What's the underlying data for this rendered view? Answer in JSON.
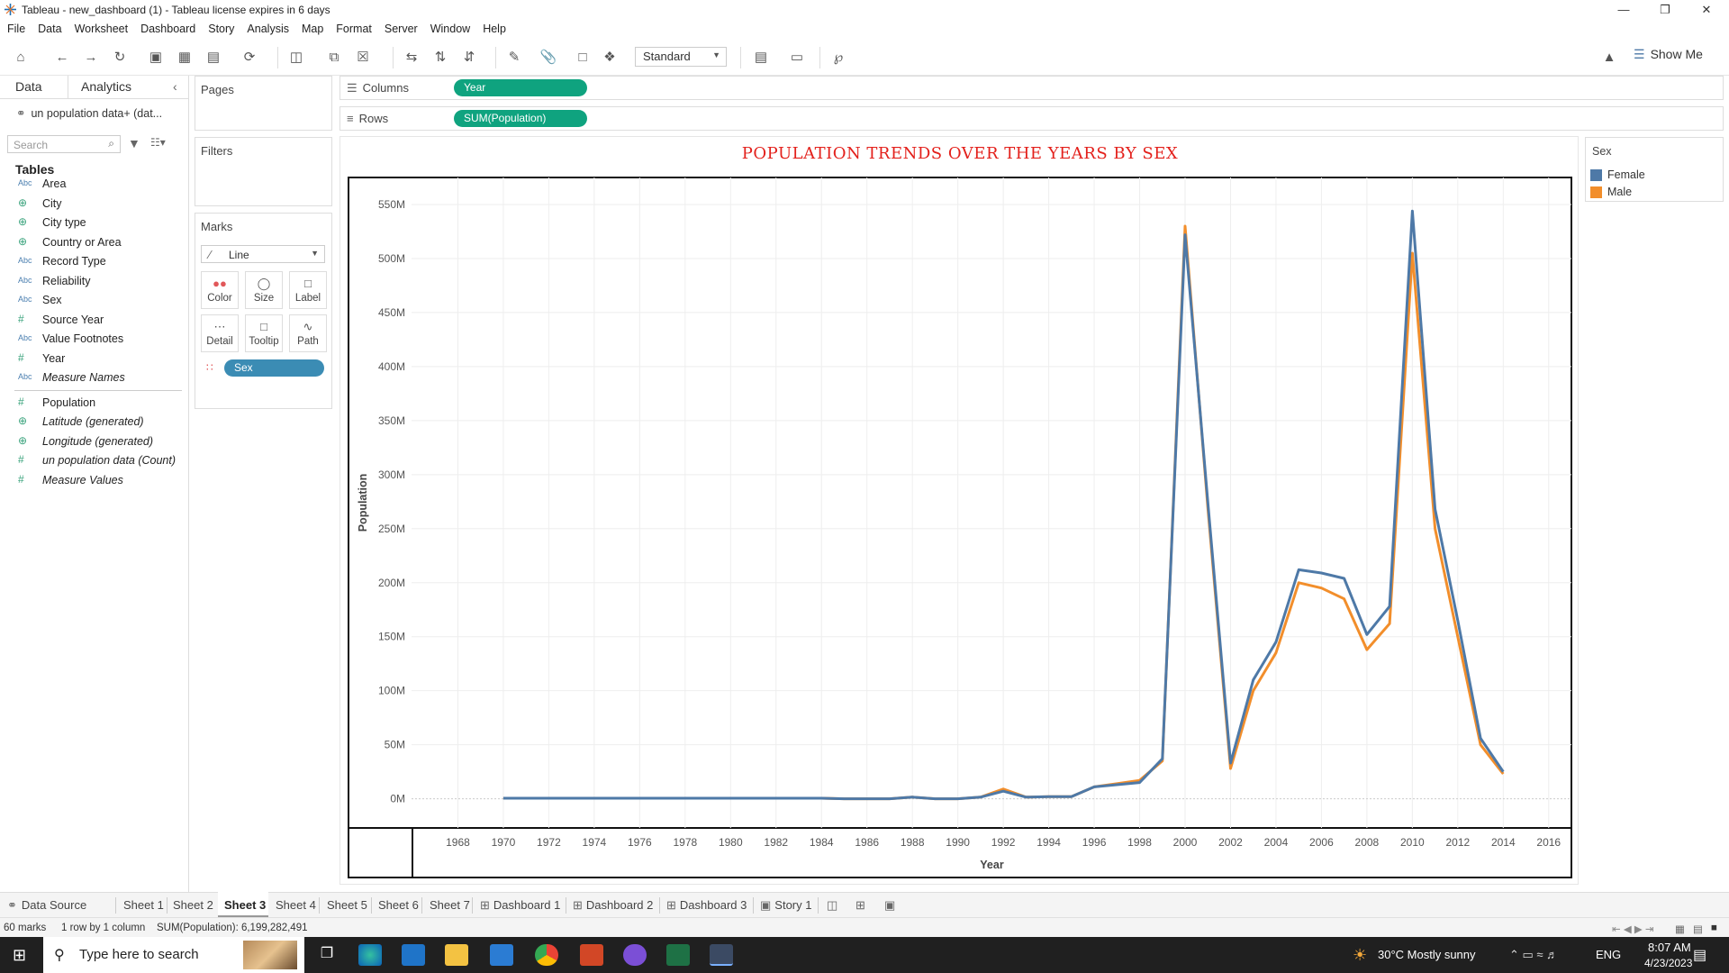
{
  "window": {
    "title": "Tableau - new_dashboard (1) - Tableau license expires in 6 days"
  },
  "menu": [
    "File",
    "Data",
    "Worksheet",
    "Dashboard",
    "Story",
    "Analysis",
    "Map",
    "Format",
    "Server",
    "Window",
    "Help"
  ],
  "toolbar": {
    "fit_mode": "Standard",
    "show_me": "Show Me"
  },
  "left_pane": {
    "tabs": {
      "data": "Data",
      "analytics": "Analytics"
    },
    "datasource": "un population data+ (dat...",
    "search_placeholder": "Search",
    "tables_header": "Tables",
    "fields": [
      {
        "type": "Abc",
        "name": "Area"
      },
      {
        "type": "geo",
        "name": "City"
      },
      {
        "type": "geo",
        "name": "City type"
      },
      {
        "type": "geo",
        "name": "Country or Area"
      },
      {
        "type": "Abc",
        "name": "Record Type"
      },
      {
        "type": "Abc",
        "name": "Reliability"
      },
      {
        "type": "Abc",
        "name": "Sex"
      },
      {
        "type": "#",
        "name": "Source Year"
      },
      {
        "type": "Abc",
        "name": "Value Footnotes"
      },
      {
        "type": "#",
        "name": "Year"
      },
      {
        "type": "Abc",
        "name": "Measure Names",
        "italic": true
      }
    ],
    "measures": [
      {
        "type": "#",
        "name": "Population"
      },
      {
        "type": "geo",
        "name": "Latitude (generated)",
        "italic": true
      },
      {
        "type": "geo",
        "name": "Longitude (generated)",
        "italic": true
      },
      {
        "type": "#",
        "name": "un population data (Count)",
        "italic": true
      },
      {
        "type": "#",
        "name": "Measure Values",
        "italic": true
      }
    ]
  },
  "cards": {
    "pages": "Pages",
    "filters": "Filters",
    "marks": "Marks",
    "mark_type": "Line",
    "mark_buttons": [
      "Color",
      "Size",
      "Label",
      "Detail",
      "Tooltip",
      "Path"
    ],
    "sex_pill": "Sex"
  },
  "shelves": {
    "columns_label": "Columns",
    "columns_pill": "Year",
    "rows_label": "Rows",
    "rows_pill": "SUM(Population)"
  },
  "legend": {
    "title": "Sex",
    "items": [
      {
        "name": "Female",
        "color": "#4e79a7"
      },
      {
        "name": "Male",
        "color": "#f28e2b"
      }
    ]
  },
  "chart_data": {
    "type": "line",
    "title": "POPULATION TRENDS OVER THE YEARS BY SEX",
    "xlabel": "Year",
    "ylabel": "Population",
    "xlim": [
      1966,
      2017
    ],
    "ylim": [
      -27000000,
      575000000
    ],
    "x_ticks": [
      1968,
      1970,
      1972,
      1974,
      1976,
      1978,
      1980,
      1982,
      1984,
      1986,
      1988,
      1990,
      1992,
      1994,
      1996,
      1998,
      2000,
      2002,
      2004,
      2006,
      2008,
      2010,
      2012,
      2014,
      2016
    ],
    "y_ticks": [
      {
        "v": 0,
        "label": "0M"
      },
      {
        "v": 50000000,
        "label": "50M"
      },
      {
        "v": 100000000,
        "label": "100M"
      },
      {
        "v": 150000000,
        "label": "150M"
      },
      {
        "v": 200000000,
        "label": "200M"
      },
      {
        "v": 250000000,
        "label": "250M"
      },
      {
        "v": 300000000,
        "label": "300M"
      },
      {
        "v": 350000000,
        "label": "350M"
      },
      {
        "v": 400000000,
        "label": "400M"
      },
      {
        "v": 450000000,
        "label": "450M"
      },
      {
        "v": 500000000,
        "label": "500M"
      },
      {
        "v": 550000000,
        "label": "550M"
      }
    ],
    "x": [
      1970,
      1971,
      1972,
      1973,
      1974,
      1975,
      1976,
      1977,
      1978,
      1979,
      1980,
      1981,
      1982,
      1983,
      1984,
      1985,
      1986,
      1987,
      1988,
      1989,
      1990,
      1991,
      1992,
      1993,
      1994,
      1995,
      1996,
      1997,
      1998,
      1999,
      2000,
      2001,
      2002,
      2003,
      2004,
      2005,
      2006,
      2007,
      2008,
      2009,
      2010,
      2011,
      2012,
      2013,
      2014
    ],
    "series": [
      {
        "name": "Male",
        "color": "#f28e2b",
        "values": [
          500000,
          500000,
          500000,
          500000,
          500000,
          500000,
          500000,
          500000,
          500000,
          500000,
          500000,
          500000,
          500000,
          500000,
          500000,
          0,
          0,
          0,
          1500000,
          0,
          0,
          1500000,
          9000000,
          1500000,
          2000000,
          2000000,
          11000000,
          14000000,
          17000000,
          35000000,
          530000000,
          270000000,
          28000000,
          100000000,
          135000000,
          200000000,
          195000000,
          185000000,
          138000000,
          162000000,
          505000000,
          250000000,
          150000000,
          50000000,
          23000000
        ]
      },
      {
        "name": "Female",
        "color": "#4e79a7",
        "values": [
          500000,
          500000,
          500000,
          500000,
          500000,
          500000,
          500000,
          500000,
          500000,
          500000,
          500000,
          500000,
          500000,
          500000,
          500000,
          0,
          0,
          0,
          1500000,
          0,
          0,
          1500000,
          7000000,
          1500000,
          2000000,
          2000000,
          11000000,
          13000000,
          15000000,
          37000000,
          522000000,
          275000000,
          33000000,
          110000000,
          145000000,
          212000000,
          209000000,
          204000000,
          152000000,
          178000000,
          544000000,
          268000000,
          165000000,
          56000000,
          25000000
        ]
      }
    ]
  },
  "sheet_tabs": [
    "Data Source",
    "Sheet 1",
    "Sheet 2",
    "Sheet 3",
    "Sheet 4",
    "Sheet 5",
    "Sheet 6",
    "Sheet 7",
    "Dashboard 1",
    "Dashboard 2",
    "Dashboard 3",
    "Story 1"
  ],
  "active_tab": "Sheet 3",
  "status": {
    "marks": "60 marks",
    "layout": "1 row by 1 column",
    "sum": "SUM(Population): 6,199,282,491"
  },
  "taskbar": {
    "search_placeholder": "Type here to search",
    "weather": "30°C  Mostly sunny",
    "lang": "ENG",
    "time": "8:07 AM",
    "date": "4/23/2023"
  }
}
